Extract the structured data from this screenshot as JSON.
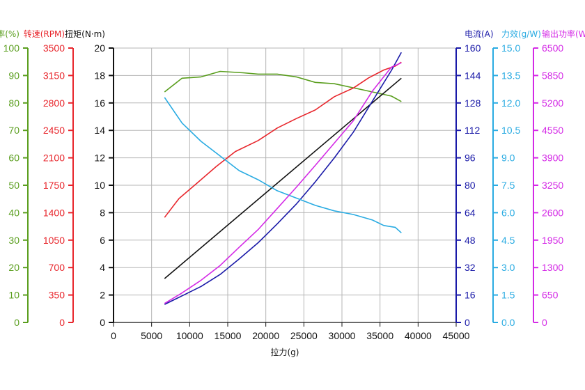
{
  "chart_data": {
    "type": "line",
    "xlabel": "拉力(g)",
    "x_ticks": [
      0,
      5000,
      10000,
      15000,
      20000,
      25000,
      30000,
      35000,
      40000,
      45000
    ],
    "xlim": [
      0,
      45000
    ],
    "grid": true,
    "axes": [
      {
        "id": "efficiency",
        "label": "效率(%)",
        "side": "left",
        "color": "#5a9e1e",
        "ticks": [
          0,
          10,
          20,
          30,
          40,
          50,
          60,
          70,
          80,
          90,
          100
        ],
        "ylim": [
          0,
          100
        ]
      },
      {
        "id": "speed",
        "label": "转速(RPM)",
        "side": "left",
        "color": "#e8262c",
        "ticks": [
          0,
          350,
          700,
          1050,
          1400,
          1750,
          2100,
          2450,
          2800,
          3150,
          3500
        ],
        "ylim": [
          0,
          3500
        ]
      },
      {
        "id": "torque",
        "label": "扭矩(N·m)",
        "side": "left",
        "color": "#111111",
        "ticks": [
          0,
          2,
          4,
          6,
          8,
          10,
          12,
          14,
          16,
          18,
          20
        ],
        "ylim": [
          0,
          20
        ]
      },
      {
        "id": "current",
        "label": "电流(A)",
        "side": "right",
        "color": "#1a1aa8",
        "ticks": [
          0,
          16,
          32,
          48,
          64,
          80,
          96,
          112,
          128,
          144,
          160
        ],
        "ylim": [
          0,
          160
        ]
      },
      {
        "id": "force_eff",
        "label": "力效(g/W)",
        "side": "right",
        "color": "#29abe2",
        "ticks": [
          "0.0",
          "1.5",
          "3.0",
          "4.5",
          "6.0",
          "7.5",
          "9.0",
          "10.5",
          "12.0",
          "13.5",
          "15.0"
        ],
        "ylim": [
          0,
          15
        ]
      },
      {
        "id": "power",
        "label": "输出功率(W)",
        "side": "right",
        "color": "#d42ae6",
        "ticks": [
          0,
          650,
          1300,
          1950,
          2600,
          3250,
          3900,
          4550,
          5200,
          5850,
          6500
        ],
        "ylim": [
          0,
          6500
        ]
      }
    ],
    "series": [
      {
        "axis": "efficiency",
        "color": "#5a9e1e",
        "x": [
          6700,
          9000,
          11500,
          14000,
          17000,
          19000,
          21500,
          24000,
          26500,
          29000,
          31500,
          34000,
          36500,
          37800
        ],
        "y": [
          84,
          89,
          89.5,
          91.5,
          91,
          90.5,
          90.5,
          89.5,
          87.5,
          87,
          85.5,
          84,
          82.5,
          80.5
        ]
      },
      {
        "axis": "speed",
        "color": "#e8262c",
        "x": [
          6700,
          8600,
          11000,
          13500,
          16000,
          19000,
          21500,
          24000,
          26500,
          29000,
          31500,
          33500,
          35500,
          37000,
          37800
        ],
        "y": [
          1340,
          1580,
          1780,
          1990,
          2180,
          2320,
          2480,
          2600,
          2710,
          2880,
          2990,
          3120,
          3220,
          3270,
          3320
        ]
      },
      {
        "axis": "torque",
        "color": "#111111",
        "x": [
          6700,
          37800
        ],
        "y": [
          3.2,
          17.8
        ]
      },
      {
        "axis": "current",
        "color": "#1a1aa8",
        "x": [
          6700,
          9000,
          11500,
          14000,
          16500,
          19000,
          21500,
          24000,
          26500,
          29000,
          31500,
          34000,
          36500,
          37800
        ],
        "y": [
          10.5,
          15.5,
          21,
          28,
          37,
          46.5,
          57.5,
          69,
          82,
          96,
          111,
          129,
          147,
          157.5
        ]
      },
      {
        "axis": "force_eff",
        "color": "#29abe2",
        "x": [
          6700,
          9000,
          11500,
          14000,
          16500,
          19000,
          21500,
          24000,
          26500,
          29000,
          31500,
          34000,
          35500,
          37000,
          37800
        ],
        "y": [
          12.3,
          10.9,
          9.9,
          9.1,
          8.3,
          7.8,
          7.2,
          6.8,
          6.4,
          6.1,
          5.9,
          5.6,
          5.3,
          5.2,
          4.9
        ]
      },
      {
        "axis": "power",
        "color": "#d42ae6",
        "x": [
          6700,
          9000,
          11500,
          14000,
          16500,
          19000,
          21500,
          24000,
          26500,
          29000,
          31500,
          34000,
          36500,
          37800
        ],
        "y": [
          450,
          700,
          1000,
          1350,
          1780,
          2200,
          2700,
          3200,
          3720,
          4250,
          4780,
          5480,
          6050,
          6150
        ]
      }
    ]
  }
}
